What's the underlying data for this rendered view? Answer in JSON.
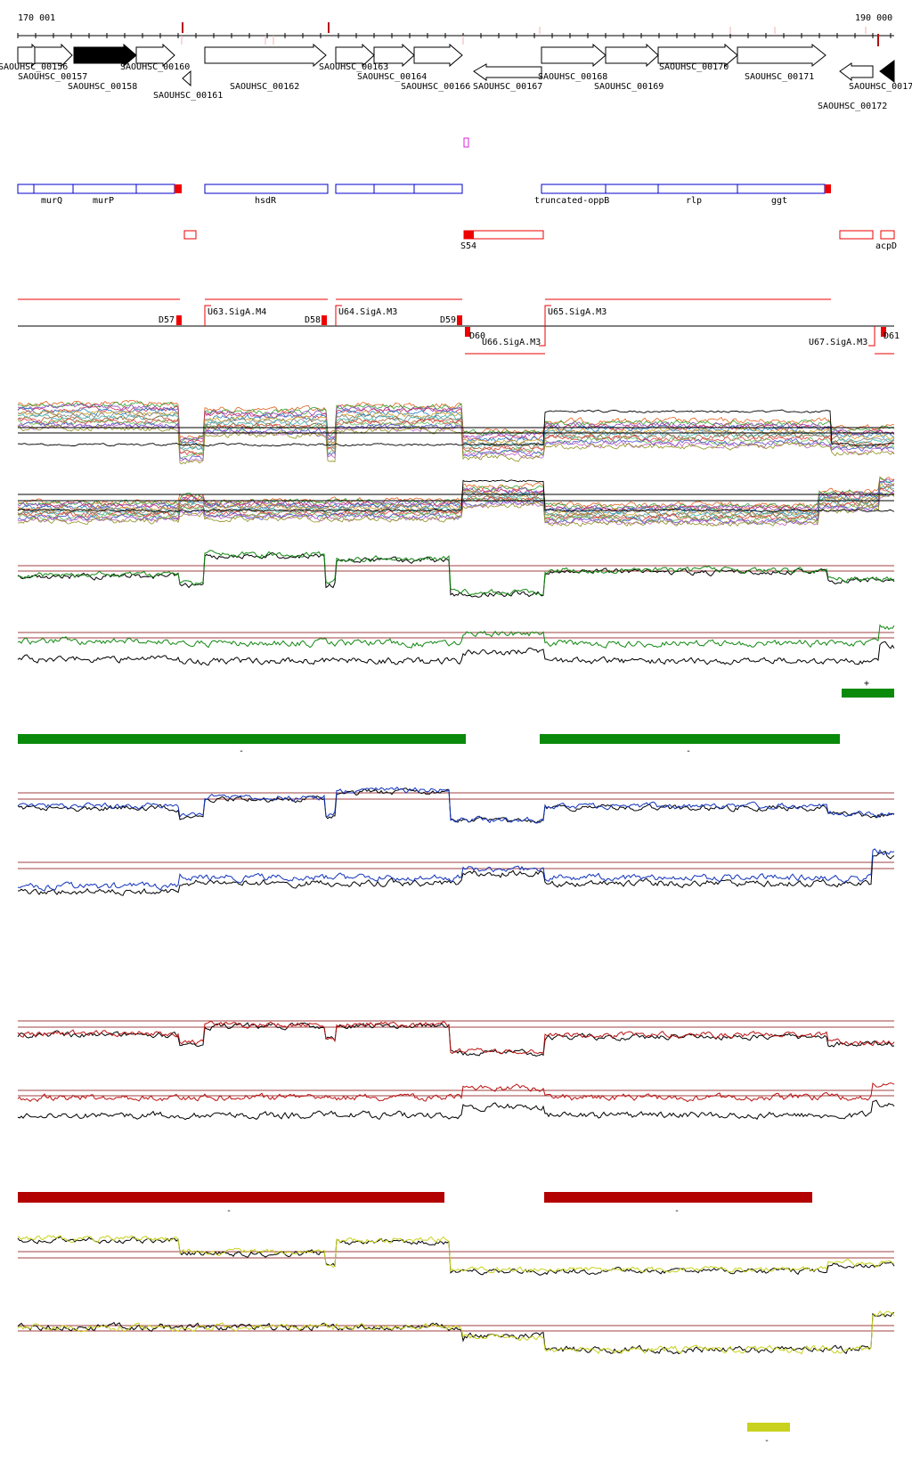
{
  "axis": {
    "start_label": "170 001",
    "end_label": "190 000",
    "start": 170001,
    "end": 190000
  },
  "genes": [
    {
      "label": "SAOUHSC_00156",
      "dir": "+",
      "filled": false
    },
    {
      "label": "SAOUHSC_00157",
      "dir": "+",
      "filled": false
    },
    {
      "label": "SAOUHSC_00158",
      "dir": "+",
      "filled": true
    },
    {
      "label": "SAOUHSC_00160",
      "dir": "+",
      "filled": false
    },
    {
      "label": "SAOUHSC_00161",
      "dir": "-",
      "filled": false
    },
    {
      "label": "SAOUHSC_00162",
      "dir": "+",
      "filled": false
    },
    {
      "label": "SAOUHSC_00163",
      "dir": "+",
      "filled": false
    },
    {
      "label": "SAOUHSC_00164",
      "dir": "+",
      "filled": false
    },
    {
      "label": "SAOUHSC_00166",
      "dir": "+",
      "filled": false
    },
    {
      "label": "SAOUHSC_00167",
      "dir": "-",
      "filled": false
    },
    {
      "label": "SAOUHSC_00168",
      "dir": "+",
      "filled": false
    },
    {
      "label": "SAOUHSC_00169",
      "dir": "+",
      "filled": false
    },
    {
      "label": "SAOUHSC_00170",
      "dir": "+",
      "filled": false
    },
    {
      "label": "SAOUHSC_00171",
      "dir": "+",
      "filled": false
    },
    {
      "label": "SAOUHSC_00172",
      "dir": "-",
      "filled": false
    },
    {
      "label": "SAOUHSC_0017",
      "dir": "-",
      "filled": true
    }
  ],
  "operon_labels": [
    "murQ",
    "murP",
    "hsdR",
    "truncated-oppB",
    "rlp",
    "ggt"
  ],
  "feature_labels": [
    "S54",
    "acpD"
  ],
  "promoters": [
    "U63.SigA.M4",
    "U64.SigA.M3",
    "U65.SigA.M3",
    "U66.SigA.M3",
    "U67.SigA.M3"
  ],
  "terminators": [
    "D57",
    "D58",
    "D59",
    "D60",
    "D61"
  ],
  "strand_marks": {
    "green_plus": "+",
    "green_minus_1": "-",
    "green_minus_2": "-",
    "red_minus_1": "-",
    "red_minus_2": "-",
    "yellow_minus": "-"
  },
  "colors": {
    "gene_fill": "#000000",
    "operon": "#0000cc",
    "feature": "#ee0000",
    "promoter": "#ee0000",
    "green": "#118811",
    "green_bar": "#0a8a0a",
    "blue": "#1133bb",
    "red": "#bb1111",
    "red_bar": "#b30000",
    "yellow": "#c8d21e",
    "threshold": "#a04040",
    "magenta": "#dd22dd"
  }
}
